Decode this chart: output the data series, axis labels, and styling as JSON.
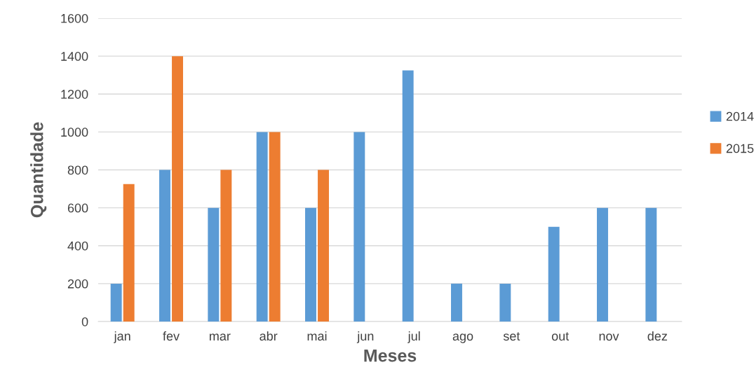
{
  "chart_data": {
    "type": "bar",
    "xlabel": "Meses",
    "ylabel": "Quantidade",
    "categories": [
      "jan",
      "fev",
      "mar",
      "abr",
      "mai",
      "jun",
      "jul",
      "ago",
      "set",
      "out",
      "nov",
      "dez"
    ],
    "series": [
      {
        "name": "2014",
        "color": "#5b9bd5",
        "values": [
          200,
          800,
          600,
          1000,
          600,
          1000,
          1325,
          200,
          200,
          500,
          600,
          600
        ]
      },
      {
        "name": "2015",
        "color": "#ed7d31",
        "values": [
          725,
          1400,
          800,
          1000,
          800,
          null,
          null,
          null,
          null,
          null,
          null,
          null
        ]
      }
    ],
    "ylim": [
      0,
      1600
    ],
    "yticks": [
      0,
      200,
      400,
      600,
      800,
      1000,
      1200,
      1400,
      1600
    ],
    "grid": "y",
    "legend": "right"
  }
}
